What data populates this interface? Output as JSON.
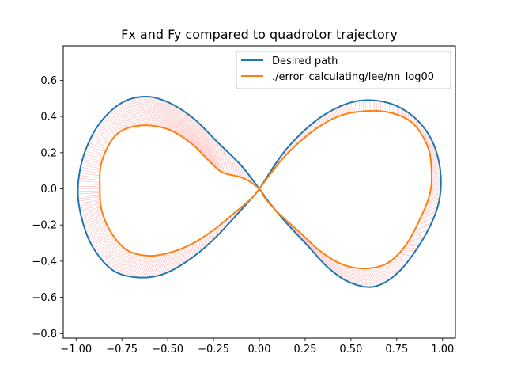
{
  "chart_data": {
    "type": "line",
    "title": "Fx and Fy compared to quadrotor trajectory",
    "xlabel": "",
    "ylabel": "",
    "xlim": [
      -1.07,
      1.07
    ],
    "ylim": [
      -0.825,
      0.79
    ],
    "xticks": [
      -1.0,
      -0.75,
      -0.5,
      -0.25,
      0.0,
      0.25,
      0.5,
      0.75,
      1.0
    ],
    "xtick_labels": [
      "−1.00",
      "−0.75",
      "−0.50",
      "−0.25",
      "0.00",
      "0.25",
      "0.50",
      "0.75",
      "1.00"
    ],
    "yticks": [
      -0.8,
      -0.6,
      -0.4,
      -0.2,
      0.0,
      0.2,
      0.4,
      0.6
    ],
    "ytick_labels": [
      "−0.8",
      "−0.6",
      "−0.4",
      "−0.2",
      "0.0",
      "0.2",
      "0.4",
      "0.6"
    ],
    "grid": false,
    "legend_position": "top-right",
    "series": [
      {
        "name": "Desired path",
        "color": "#1f77b4",
        "x": [
          0.0,
          0.14,
          0.3,
          0.45,
          0.58,
          0.72,
          0.84,
          0.93,
          0.98,
          0.99,
          0.96,
          0.88,
          0.76,
          0.63,
          0.5,
          0.38,
          0.26,
          0.14,
          0.05,
          0.0,
          -0.1,
          -0.23,
          -0.36,
          -0.5,
          -0.63,
          -0.76,
          -0.88,
          -0.96,
          -0.99,
          -0.97,
          -0.91,
          -0.8,
          -0.66,
          -0.52,
          -0.38,
          -0.25,
          -0.12,
          -0.04,
          0.0
        ],
        "y": [
          0.0,
          0.21,
          0.37,
          0.46,
          0.49,
          0.47,
          0.4,
          0.29,
          0.15,
          0.0,
          -0.14,
          -0.3,
          -0.46,
          -0.54,
          -0.52,
          -0.44,
          -0.31,
          -0.18,
          -0.07,
          0.0,
          0.13,
          0.26,
          0.39,
          0.48,
          0.51,
          0.47,
          0.35,
          0.18,
          0.0,
          -0.16,
          -0.32,
          -0.45,
          -0.49,
          -0.47,
          -0.39,
          -0.28,
          -0.14,
          -0.05,
          0.0
        ]
      },
      {
        "name": "./error_calculating/lee/nn_log00",
        "color": "#ff7f0e",
        "x": [
          0.0,
          0.13,
          0.28,
          0.43,
          0.58,
          0.72,
          0.84,
          0.92,
          0.94,
          0.93,
          0.88,
          0.8,
          0.7,
          0.58,
          0.46,
          0.34,
          0.22,
          0.1,
          0.03,
          0.0,
          -0.09,
          -0.2,
          -0.27,
          -0.37,
          -0.5,
          -0.65,
          -0.78,
          -0.86,
          -0.87,
          -0.86,
          -0.81,
          -0.72,
          -0.6,
          -0.48,
          -0.36,
          -0.24,
          -0.12,
          -0.04,
          0.0
        ],
        "y": [
          0.0,
          0.17,
          0.31,
          0.4,
          0.43,
          0.42,
          0.36,
          0.23,
          0.09,
          -0.03,
          -0.16,
          -0.31,
          -0.41,
          -0.44,
          -0.42,
          -0.35,
          -0.24,
          -0.13,
          -0.05,
          0.0,
          0.06,
          0.09,
          0.15,
          0.25,
          0.33,
          0.35,
          0.3,
          0.15,
          0.0,
          -0.12,
          -0.24,
          -0.34,
          -0.37,
          -0.35,
          -0.3,
          -0.22,
          -0.12,
          -0.05,
          0.0
        ]
      }
    ],
    "force_vectors_color": "#ff0000"
  }
}
